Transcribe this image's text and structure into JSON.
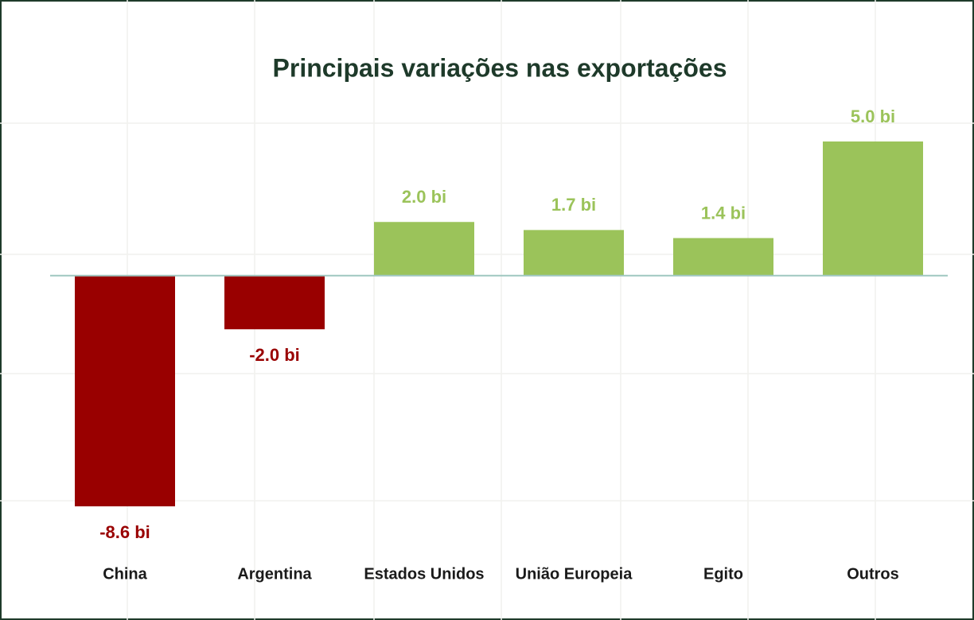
{
  "chart_data": {
    "type": "bar",
    "title": "Principais variações nas exportações",
    "categories": [
      "China",
      "Argentina",
      "Estados Unidos",
      "União Europeia",
      "Egito",
      "Outros"
    ],
    "values": [
      -8.6,
      -2.0,
      2.0,
      1.7,
      1.4,
      5.0
    ],
    "value_labels": [
      "-8.6 bi",
      "-2.0 bi",
      "2.0 bi",
      "1.7 bi",
      "1.4 bi",
      "5.0 bi"
    ],
    "colors": [
      "#990000",
      "#990000",
      "#9bc35a",
      "#9bc35a",
      "#9bc35a",
      "#9bc35a"
    ]
  }
}
